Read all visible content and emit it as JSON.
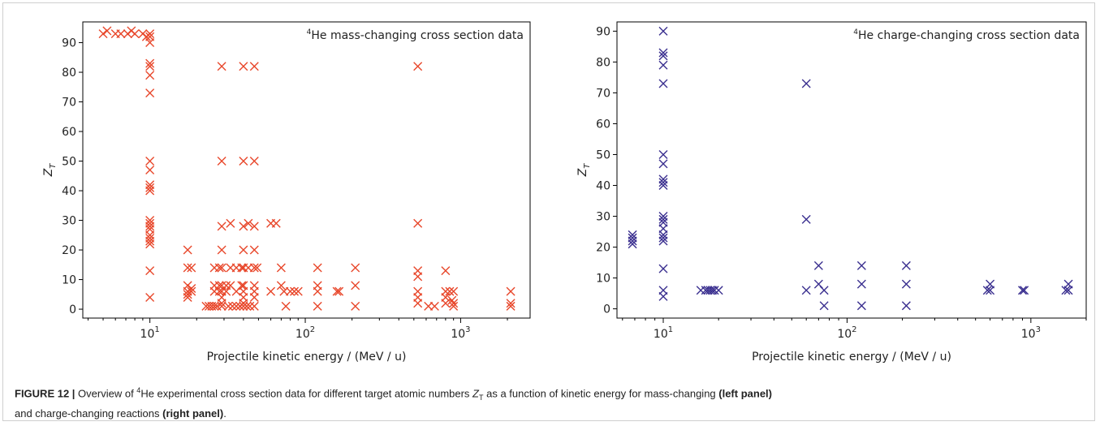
{
  "chart_data": [
    {
      "type": "scatter",
      "title_super": "4",
      "title": "He mass-changing cross section data",
      "xlabel": "Projectile kinetic energy / (MeV / u)",
      "ylabel_main": "Z",
      "ylabel_sub": "T",
      "xscale": "log",
      "xlim": [
        3.7,
        2800
      ],
      "ylim": [
        -3,
        97
      ],
      "x_ticks": [
        {
          "base": "10",
          "exp": "1",
          "value": 10
        },
        {
          "base": "10",
          "exp": "2",
          "value": 100
        },
        {
          "base": "10",
          "exp": "3",
          "value": 1000
        }
      ],
      "y_ticks": [
        "0",
        "10",
        "20",
        "30",
        "40",
        "50",
        "60",
        "70",
        "80",
        "90"
      ],
      "marker": "x",
      "color": "#e8472b",
      "grid": false,
      "points": [
        [
          5,
          93
        ],
        [
          5.3,
          94
        ],
        [
          6,
          93
        ],
        [
          6.5,
          93
        ],
        [
          7.2,
          93
        ],
        [
          7.6,
          94
        ],
        [
          8,
          93
        ],
        [
          9,
          93
        ],
        [
          9.5,
          92
        ],
        [
          10,
          93
        ],
        [
          10,
          92
        ],
        [
          10,
          90
        ],
        [
          10,
          83
        ],
        [
          10,
          82
        ],
        [
          10,
          79
        ],
        [
          10,
          73
        ],
        [
          10,
          50
        ],
        [
          10,
          47
        ],
        [
          10,
          42
        ],
        [
          10,
          41
        ],
        [
          10,
          40
        ],
        [
          10,
          30
        ],
        [
          10,
          29
        ],
        [
          10,
          28
        ],
        [
          10,
          27
        ],
        [
          10,
          25
        ],
        [
          10,
          24
        ],
        [
          10,
          23
        ],
        [
          10,
          22
        ],
        [
          10,
          13
        ],
        [
          10,
          4
        ],
        [
          17.5,
          20
        ],
        [
          17.5,
          14
        ],
        [
          17.5,
          8
        ],
        [
          17.5,
          6
        ],
        [
          17.5,
          5
        ],
        [
          17.5,
          4
        ],
        [
          18.5,
          14
        ],
        [
          18.5,
          7
        ],
        [
          18.5,
          6
        ],
        [
          23,
          1
        ],
        [
          24,
          1
        ],
        [
          25,
          1
        ],
        [
          26,
          14
        ],
        [
          26,
          8
        ],
        [
          26,
          6
        ],
        [
          26,
          1
        ],
        [
          27,
          1
        ],
        [
          28,
          14
        ],
        [
          28,
          8
        ],
        [
          28,
          6
        ],
        [
          29,
          82
        ],
        [
          29,
          50
        ],
        [
          29,
          28
        ],
        [
          29,
          20
        ],
        [
          29,
          14
        ],
        [
          29,
          8
        ],
        [
          29,
          6
        ],
        [
          29,
          4
        ],
        [
          29,
          2
        ],
        [
          29,
          1
        ],
        [
          31,
          8
        ],
        [
          31,
          6
        ],
        [
          32,
          1
        ],
        [
          33,
          29
        ],
        [
          33,
          14
        ],
        [
          33,
          8
        ],
        [
          34,
          1
        ],
        [
          36,
          14
        ],
        [
          36,
          6
        ],
        [
          36,
          1
        ],
        [
          38,
          1
        ],
        [
          39,
          14
        ],
        [
          39,
          8
        ],
        [
          40,
          82
        ],
        [
          40,
          50
        ],
        [
          40,
          28
        ],
        [
          40,
          20
        ],
        [
          40,
          14
        ],
        [
          40,
          8
        ],
        [
          40,
          6
        ],
        [
          40,
          4
        ],
        [
          40,
          2
        ],
        [
          40,
          1
        ],
        [
          42,
          1
        ],
        [
          43,
          29
        ],
        [
          43,
          14
        ],
        [
          44,
          1
        ],
        [
          47,
          82
        ],
        [
          47,
          50
        ],
        [
          47,
          28
        ],
        [
          47,
          20
        ],
        [
          47,
          14
        ],
        [
          47,
          8
        ],
        [
          47,
          6
        ],
        [
          47,
          4
        ],
        [
          47,
          1
        ],
        [
          49,
          14
        ],
        [
          60,
          29
        ],
        [
          60,
          6
        ],
        [
          65,
          29
        ],
        [
          70,
          14
        ],
        [
          70,
          8
        ],
        [
          73,
          6
        ],
        [
          75,
          1
        ],
        [
          80,
          6
        ],
        [
          85,
          6
        ],
        [
          90,
          6
        ],
        [
          120,
          14
        ],
        [
          120,
          8
        ],
        [
          120,
          6
        ],
        [
          120,
          1
        ],
        [
          160,
          6
        ],
        [
          165,
          6
        ],
        [
          210,
          14
        ],
        [
          210,
          8
        ],
        [
          210,
          1
        ],
        [
          530,
          82
        ],
        [
          530,
          29
        ],
        [
          530,
          13
        ],
        [
          530,
          11
        ],
        [
          530,
          6
        ],
        [
          530,
          4
        ],
        [
          530,
          2
        ],
        [
          620,
          1
        ],
        [
          680,
          1
        ],
        [
          800,
          13
        ],
        [
          800,
          6
        ],
        [
          800,
          4
        ],
        [
          800,
          2
        ],
        [
          850,
          6
        ],
        [
          880,
          3
        ],
        [
          900,
          6
        ],
        [
          900,
          2
        ],
        [
          900,
          1
        ],
        [
          2100,
          6
        ],
        [
          2100,
          2
        ],
        [
          2100,
          1
        ]
      ]
    },
    {
      "type": "scatter",
      "title_super": "4",
      "title": "He charge-changing cross section data",
      "xlabel": "Projectile kinetic energy / (MeV / u)",
      "ylabel_main": "Z",
      "ylabel_sub": "T",
      "xscale": "log",
      "xlim": [
        5.6,
        2000
      ],
      "ylim": [
        -3,
        93
      ],
      "x_ticks": [
        {
          "base": "10",
          "exp": "1",
          "value": 10
        },
        {
          "base": "10",
          "exp": "2",
          "value": 100
        },
        {
          "base": "10",
          "exp": "3",
          "value": 1000
        }
      ],
      "y_ticks": [
        "0",
        "10",
        "20",
        "30",
        "40",
        "50",
        "60",
        "70",
        "80",
        "90"
      ],
      "marker": "x",
      "color": "#3a2f8f",
      "grid": false,
      "points": [
        [
          6.8,
          24
        ],
        [
          6.8,
          23
        ],
        [
          6.8,
          22
        ],
        [
          6.8,
          21
        ],
        [
          10,
          90
        ],
        [
          10,
          83
        ],
        [
          10,
          82
        ],
        [
          10,
          79
        ],
        [
          10,
          73
        ],
        [
          10,
          50
        ],
        [
          10,
          47
        ],
        [
          10,
          42
        ],
        [
          10,
          41
        ],
        [
          10,
          40
        ],
        [
          10,
          30
        ],
        [
          10,
          29
        ],
        [
          10,
          28
        ],
        [
          10,
          26
        ],
        [
          10,
          24
        ],
        [
          10,
          23
        ],
        [
          10,
          22
        ],
        [
          10,
          13
        ],
        [
          10,
          6
        ],
        [
          10,
          4
        ],
        [
          16,
          6
        ],
        [
          17,
          6
        ],
        [
          17.5,
          6
        ],
        [
          18,
          6
        ],
        [
          18.5,
          6
        ],
        [
          19,
          6
        ],
        [
          20,
          6
        ],
        [
          60,
          73
        ],
        [
          60,
          29
        ],
        [
          60,
          6
        ],
        [
          70,
          14
        ],
        [
          70,
          8
        ],
        [
          75,
          6
        ],
        [
          75,
          1
        ],
        [
          120,
          14
        ],
        [
          120,
          8
        ],
        [
          120,
          1
        ],
        [
          210,
          14
        ],
        [
          210,
          8
        ],
        [
          210,
          1
        ],
        [
          580,
          6
        ],
        [
          600,
          8
        ],
        [
          600,
          6
        ],
        [
          900,
          6
        ],
        [
          920,
          6
        ],
        [
          1550,
          6
        ],
        [
          1600,
          8
        ],
        [
          1600,
          6
        ]
      ]
    }
  ],
  "caption": {
    "label": "FIGURE 12 |",
    "t1": " Overview of ",
    "sup1": "4",
    "t2": "He experimental cross section data for different target atomic numbers ",
    "z": "Z",
    "zsub": "T",
    "t3": " as a function of kinetic energy for mass-changing ",
    "b1": "(left panel)",
    "t4": " and charge-changing reactions ",
    "b2": "(right panel)",
    "t5": "."
  }
}
